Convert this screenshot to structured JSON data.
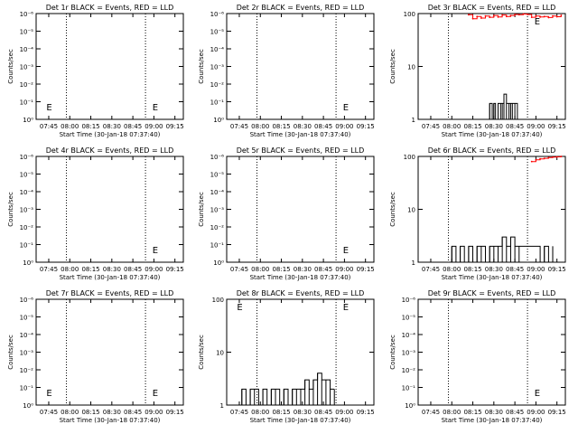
{
  "chart_data": [
    {
      "type": "line",
      "title": "Det 1r BLACK = Events, RED = LLD",
      "xlabel": "Start Time (30-Jan-18 07:37:40)",
      "ylabel": "Counts/sec",
      "x_ticks": [
        "07:45",
        "08:00",
        "08:15",
        "08:30",
        "08:45",
        "09:00",
        "09:15"
      ],
      "y_ticks": [
        "10⁰",
        "10⁻¹",
        "10⁻²",
        "10⁻³",
        "10⁻⁴",
        "10⁻⁵",
        "10⁻⁶"
      ],
      "annotations": [
        "E",
        "E"
      ],
      "series": []
    },
    {
      "type": "line",
      "title": "Det 2r BLACK = Events, RED = LLD",
      "xlabel": "Start Time (30-Jan-18 07:37:40)",
      "ylabel": "Counts/sec",
      "x_ticks": [
        "07:45",
        "08:00",
        "08:15",
        "08:30",
        "08:45",
        "09:00",
        "09:15"
      ],
      "y_ticks": [
        "10⁰",
        "10⁻¹",
        "10⁻²",
        "10⁻³",
        "10⁻⁴",
        "10⁻⁵",
        "10⁻⁶"
      ],
      "annotations": [
        "E"
      ],
      "series": []
    },
    {
      "type": "line",
      "title": "Det 3r BLACK = Events, RED = LLD",
      "xlabel": "Start Time (30-Jan-18 07:37:40)",
      "ylabel": "Counts/sec",
      "x_ticks": [
        "07:45",
        "08:00",
        "08:15",
        "08:30",
        "08:45",
        "09:00",
        "09:15"
      ],
      "y_ticks": [
        "100",
        "10",
        "1"
      ],
      "annotations": [
        "E"
      ],
      "series": [
        {
          "color": "#000000",
          "x": [
            8.42,
            8.45,
            8.48,
            8.5,
            8.52,
            8.55,
            8.58,
            8.6,
            8.62,
            8.65,
            8.68,
            8.7,
            8.72,
            8.75,
            8.78,
            8.82
          ],
          "values": [
            1,
            2,
            1,
            2,
            1,
            2,
            2,
            2,
            3,
            2,
            2,
            2,
            2,
            2,
            1,
            1
          ]
        },
        {
          "color": "#ff0000",
          "x": [
            8.2,
            8.25,
            8.3,
            8.35,
            8.4,
            8.45,
            8.5,
            8.55,
            8.6,
            8.65,
            8.7,
            8.75,
            8.8,
            8.85,
            8.9,
            8.95,
            9.0,
            9.05,
            9.1,
            9.15,
            9.2,
            9.25,
            9.3
          ],
          "values": [
            95,
            80,
            88,
            82,
            90,
            85,
            92,
            86,
            94,
            88,
            92,
            96,
            95,
            98,
            96,
            85,
            90,
            86,
            88,
            84,
            90,
            87,
            93
          ]
        }
      ]
    },
    {
      "type": "line",
      "title": "Det 4r BLACK = Events, RED = LLD",
      "xlabel": "Start Time (30-Jan-18 07:37:40)",
      "ylabel": "Counts/sec",
      "x_ticks": [
        "07:45",
        "08:00",
        "08:15",
        "08:30",
        "08:45",
        "09:00",
        "09:15"
      ],
      "y_ticks": [
        "10⁰",
        "10⁻¹",
        "10⁻²",
        "10⁻³",
        "10⁻⁴",
        "10⁻⁵",
        "10⁻⁶"
      ],
      "annotations": [
        "E"
      ],
      "series": []
    },
    {
      "type": "line",
      "title": "Det 5r BLACK = Events, RED = LLD",
      "xlabel": "Start Time (30-Jan-18 07:37:40)",
      "ylabel": "Counts/sec",
      "x_ticks": [
        "07:45",
        "08:00",
        "08:15",
        "08:30",
        "08:45",
        "09:00",
        "09:15"
      ],
      "y_ticks": [
        "10⁰",
        "10⁻¹",
        "10⁻²",
        "10⁻³",
        "10⁻⁴",
        "10⁻⁵",
        "10⁻⁶"
      ],
      "annotations": [
        "E"
      ],
      "series": []
    },
    {
      "type": "line",
      "title": "Det 6r BLACK = Events, RED = LLD",
      "xlabel": "Start Time (30-Jan-18 07:37:40)",
      "ylabel": "Counts/sec",
      "x_ticks": [
        "07:45",
        "08:00",
        "08:15",
        "08:30",
        "08:45",
        "09:00",
        "09:15"
      ],
      "y_ticks": [
        "100",
        "10",
        "1"
      ],
      "annotations": [],
      "series": [
        {
          "color": "#000000",
          "x": [
            7.95,
            8.0,
            8.05,
            8.1,
            8.15,
            8.2,
            8.25,
            8.3,
            8.35,
            8.4,
            8.45,
            8.5,
            8.55,
            8.6,
            8.65,
            8.7,
            8.75,
            8.8,
            9.05,
            9.1,
            9.15,
            9.2
          ],
          "values": [
            1,
            2,
            1,
            2,
            1,
            2,
            1,
            2,
            2,
            1,
            2,
            2,
            2,
            3,
            2,
            3,
            2,
            2,
            1,
            2,
            1,
            2
          ]
        },
        {
          "color": "#ff0000",
          "x": [
            8.95,
            9.0,
            9.05,
            9.1,
            9.15,
            9.2,
            9.25,
            9.3
          ],
          "values": [
            80,
            86,
            90,
            92,
            95,
            97,
            98,
            100
          ]
        }
      ]
    },
    {
      "type": "line",
      "title": "Det 7r BLACK = Events, RED = LLD",
      "xlabel": "Start Time (30-Jan-18 07:37:40)",
      "ylabel": "Counts/sec",
      "x_ticks": [
        "07:45",
        "08:00",
        "08:15",
        "08:30",
        "08:45",
        "09:00",
        "09:15"
      ],
      "y_ticks": [
        "10⁰",
        "10⁻¹",
        "10⁻²",
        "10⁻³",
        "10⁻⁴",
        "10⁻⁵",
        "10⁻⁶"
      ],
      "annotations": [
        "E",
        "E"
      ],
      "series": []
    },
    {
      "type": "line",
      "title": "Det 8r BLACK = Events, RED = LLD",
      "xlabel": "Start Time (30-Jan-18 07:37:40)",
      "ylabel": "Counts/sec",
      "x_ticks": [
        "07:45",
        "08:00",
        "08:15",
        "08:30",
        "08:45",
        "09:00",
        "09:15"
      ],
      "y_ticks": [
        "100",
        "10",
        "1"
      ],
      "annotations": [
        "E",
        "E"
      ],
      "series": [
        {
          "color": "#000000",
          "x": [
            7.73,
            7.78,
            7.83,
            7.88,
            7.93,
            7.98,
            8.03,
            8.08,
            8.13,
            8.18,
            8.23,
            8.28,
            8.33,
            8.38,
            8.43,
            8.48,
            8.53,
            8.58,
            8.63,
            8.68,
            8.73,
            8.78,
            8.83,
            8.88
          ],
          "values": [
            1,
            2,
            1,
            2,
            2,
            1,
            2,
            1,
            2,
            2,
            1,
            2,
            1,
            2,
            2,
            2,
            3,
            2,
            3,
            4,
            3,
            3,
            2,
            2
          ]
        }
      ]
    },
    {
      "type": "line",
      "title": "Det 9r BLACK = Events, RED = LLD",
      "xlabel": "Start Time (30-Jan-18 07:37:40)",
      "ylabel": "Counts/sec",
      "x_ticks": [
        "07:45",
        "08:00",
        "08:15",
        "08:30",
        "08:45",
        "09:00",
        "09:15"
      ],
      "y_ticks": [
        "10⁰",
        "10⁻¹",
        "10⁻²",
        "10⁻³",
        "10⁻⁴",
        "10⁻⁵",
        "10⁻⁶"
      ],
      "annotations": [
        "E"
      ],
      "series": []
    }
  ]
}
